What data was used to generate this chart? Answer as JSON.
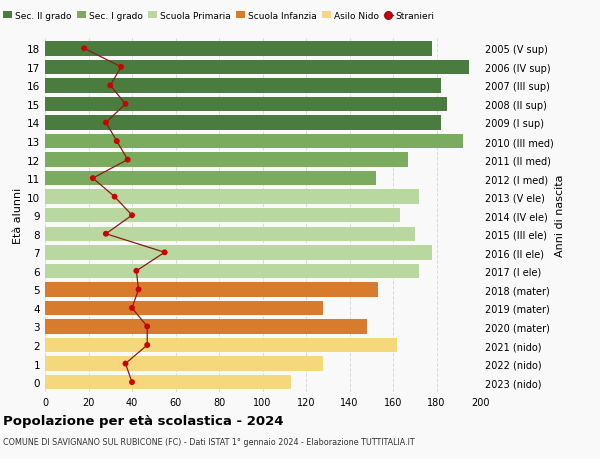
{
  "ages": [
    18,
    17,
    16,
    15,
    14,
    13,
    12,
    11,
    10,
    9,
    8,
    7,
    6,
    5,
    4,
    3,
    2,
    1,
    0
  ],
  "years": [
    "2005 (V sup)",
    "2006 (IV sup)",
    "2007 (III sup)",
    "2008 (II sup)",
    "2009 (I sup)",
    "2010 (III med)",
    "2011 (II med)",
    "2012 (I med)",
    "2013 (V ele)",
    "2014 (IV ele)",
    "2015 (III ele)",
    "2016 (II ele)",
    "2017 (I ele)",
    "2018 (mater)",
    "2019 (mater)",
    "2020 (mater)",
    "2021 (nido)",
    "2022 (nido)",
    "2023 (nido)"
  ],
  "bar_values": [
    178,
    195,
    182,
    185,
    182,
    192,
    167,
    152,
    172,
    163,
    170,
    178,
    172,
    153,
    128,
    148,
    162,
    128,
    113
  ],
  "bar_colors": [
    "#4a7c3f",
    "#4a7c3f",
    "#4a7c3f",
    "#4a7c3f",
    "#4a7c3f",
    "#7aab5e",
    "#7aab5e",
    "#7aab5e",
    "#b8d8a0",
    "#b8d8a0",
    "#b8d8a0",
    "#b8d8a0",
    "#b8d8a0",
    "#d97b2c",
    "#d97b2c",
    "#d97b2c",
    "#f5d87c",
    "#f5d87c",
    "#f5d87c"
  ],
  "stranieri_values": [
    18,
    35,
    30,
    37,
    28,
    33,
    38,
    22,
    32,
    40,
    28,
    55,
    42,
    43,
    40,
    47,
    47,
    37,
    40
  ],
  "legend_labels": [
    "Sec. II grado",
    "Sec. I grado",
    "Scuola Primaria",
    "Scuola Infanzia",
    "Asilo Nido",
    "Stranieri"
  ],
  "legend_colors": [
    "#4a7c3f",
    "#7aab5e",
    "#b8d8a0",
    "#d97b2c",
    "#f5d87c",
    "#cc0000"
  ],
  "ylabel_left": "Età alunni",
  "ylabel_right": "Anni di nascita",
  "title": "Popolazione per età scolastica - 2024",
  "subtitle": "COMUNE DI SAVIGNANO SUL RUBICONE (FC) - Dati ISTAT 1° gennaio 2024 - Elaborazione TUTTITALIA.IT",
  "xlim": [
    0,
    200
  ],
  "xticks": [
    0,
    20,
    40,
    60,
    80,
    100,
    120,
    140,
    160,
    180,
    200
  ],
  "background_color": "#f9f9f9",
  "grid_color": "#d8d8d8",
  "bar_height": 0.78
}
